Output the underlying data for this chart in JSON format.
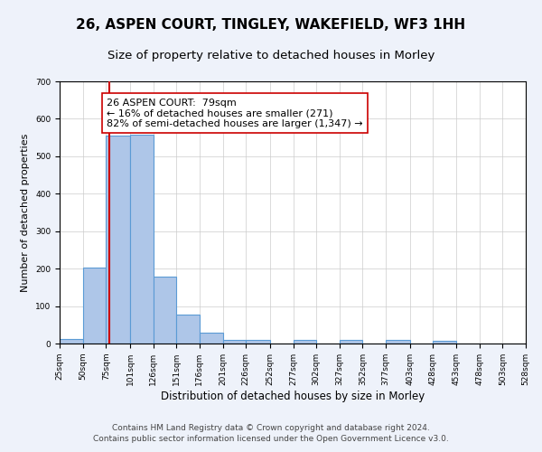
{
  "title": "26, ASPEN COURT, TINGLEY, WAKEFIELD, WF3 1HH",
  "subtitle": "Size of property relative to detached houses in Morley",
  "xlabel": "Distribution of detached houses by size in Morley",
  "ylabel": "Number of detached properties",
  "bar_edges": [
    25,
    50,
    75,
    101,
    126,
    151,
    176,
    201,
    226,
    252,
    277,
    302,
    327,
    352,
    377,
    403,
    428,
    453,
    478,
    503,
    528
  ],
  "bar_heights": [
    12,
    203,
    556,
    558,
    178,
    78,
    30,
    10,
    10,
    0,
    10,
    0,
    10,
    0,
    10,
    0,
    7,
    0,
    0,
    0
  ],
  "bar_color": "#aec6e8",
  "bar_edge_color": "#5b9bd5",
  "bar_linewidth": 0.8,
  "redline_x": 79,
  "redline_color": "#cc0000",
  "redline_linewidth": 1.5,
  "annotation_text": "26 ASPEN COURT:  79sqm\n← 16% of detached houses are smaller (271)\n82% of semi-detached houses are larger (1,347) →",
  "annotation_box_edgecolor": "#cc0000",
  "annotation_box_facecolor": "#ffffff",
  "ylim": [
    0,
    700
  ],
  "yticks": [
    0,
    100,
    200,
    300,
    400,
    500,
    600,
    700
  ],
  "tick_labels": [
    "25sqm",
    "50sqm",
    "75sqm",
    "101sqm",
    "126sqm",
    "151sqm",
    "176sqm",
    "201sqm",
    "226sqm",
    "252sqm",
    "277sqm",
    "302sqm",
    "327sqm",
    "352sqm",
    "377sqm",
    "403sqm",
    "428sqm",
    "453sqm",
    "478sqm",
    "503sqm",
    "528sqm"
  ],
  "footer_line1": "Contains HM Land Registry data © Crown copyright and database right 2024.",
  "footer_line2": "Contains public sector information licensed under the Open Government Licence v3.0.",
  "bg_color": "#eef2fa",
  "plot_bg_color": "#ffffff",
  "grid_color": "#cccccc",
  "title_fontsize": 11,
  "subtitle_fontsize": 9.5,
  "xlabel_fontsize": 8.5,
  "ylabel_fontsize": 8,
  "footer_fontsize": 6.5,
  "tick_fontsize": 6.5,
  "annotation_fontsize": 8
}
